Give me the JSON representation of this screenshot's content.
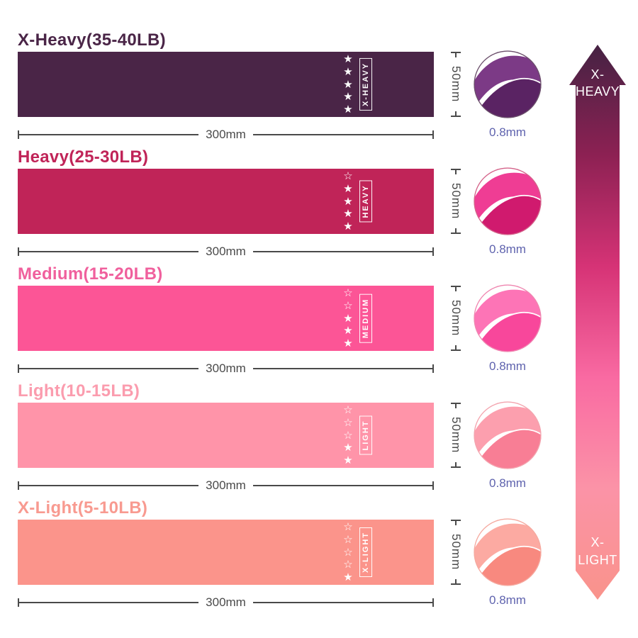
{
  "page": {
    "background": "#ffffff"
  },
  "dimension_color": "#4a4a4a",
  "thickness_text_color": "#5f63ae",
  "bands": [
    {
      "title": "X-Heavy(35-40LB)",
      "tag": "X-HEAVY",
      "color": "#4a2547",
      "title_color": "#4a2547",
      "stars_filled": 5,
      "stars_total": 5,
      "width_label": "300mm",
      "height_label": "50mm",
      "thickness_label": "0.8mm",
      "fold_light": "#7c3a86",
      "fold_dark": "#5a2363",
      "ring_color": "#6b4f6b"
    },
    {
      "title": "Heavy(25-30LB)",
      "tag": "HEAVY",
      "color": "#c02458",
      "title_color": "#c02458",
      "stars_filled": 4,
      "stars_total": 5,
      "width_label": "300mm",
      "height_label": "50mm",
      "thickness_label": "0.8mm",
      "fold_light": "#ef3d94",
      "fold_dark": "#d01a6e",
      "ring_color": "#d4638a"
    },
    {
      "title": "Medium(15-20LB)",
      "tag": "MEDIUM",
      "color": "#fc5596",
      "title_color": "#f0609d",
      "stars_filled": 3,
      "stars_total": 5,
      "width_label": "300mm",
      "height_label": "50mm",
      "thickness_label": "0.8mm",
      "fold_light": "#fd74b6",
      "fold_dark": "#f8479b",
      "ring_color": "#ef86b0"
    },
    {
      "title": "Light(10-15LB)",
      "tag": "LIGHT",
      "color": "#ff94a9",
      "title_color": "#fb9cae",
      "stars_filled": 2,
      "stars_total": 5,
      "width_label": "300mm",
      "height_label": "50mm",
      "thickness_label": "0.8mm",
      "fold_light": "#fc9fae",
      "fold_dark": "#f87e95",
      "ring_color": "#f3a4ae"
    },
    {
      "title": "X-Light(5-10LB)",
      "tag": "X-LIGHT",
      "color": "#fb948b",
      "title_color": "#f89a90",
      "stars_filled": 1,
      "stars_total": 5,
      "width_label": "300mm",
      "height_label": "50mm",
      "thickness_label": "0.8mm",
      "fold_light": "#fcaaa2",
      "fold_dark": "#f8897f",
      "ring_color": "#f5a99f"
    }
  ],
  "arrow": {
    "top_label": "X-HEAVY",
    "bottom_label": "X-LIGHT",
    "text_color": "#ffffff",
    "gradient": [
      "#452243",
      "#8d2153",
      "#d63376",
      "#f96aa2",
      "#fb93a7",
      "#f9938b"
    ]
  }
}
